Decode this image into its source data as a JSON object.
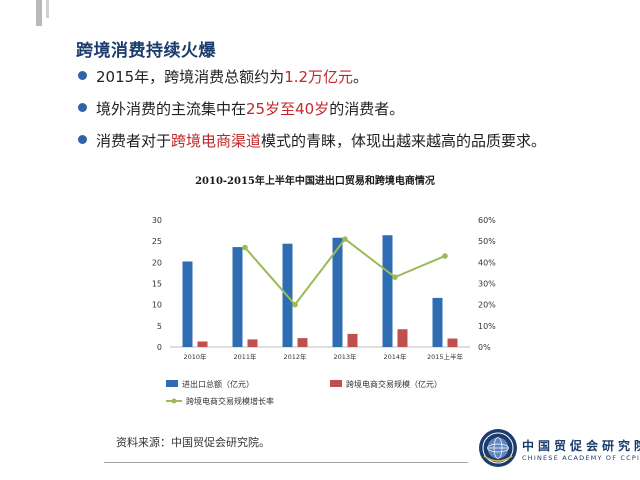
{
  "slide": {
    "title": "跨境消费持续火爆",
    "bullets": [
      {
        "pre": "2015年，跨境消费总额约为",
        "hl": "1.2万亿元",
        "post": "。"
      },
      {
        "pre": "境外消费的主流集中在",
        "hl": "25岁至40岁",
        "post": "的消费者。"
      },
      {
        "pre": "消费者对于",
        "hl": "跨境电商渠道",
        "post": "模式的青睐，体现出越来越高的品质要求。"
      }
    ],
    "source": "资料来源：中国贸促会研究院。",
    "org_cn": "中国贸促会研究院",
    "org_en": "CHINESE ACADEMY OF CCPIT"
  },
  "colors": {
    "title": "#1d3c6e",
    "highlight": "#c0282d",
    "bullet": "#2f63a3",
    "bar_trade": "#2f6db3",
    "bar_ecommerce": "#c0504d",
    "line_growth": "#9bbb59",
    "axis": "#bfbfbf"
  },
  "chart_data": {
    "type": "bar",
    "title": "2010-2015年上半年中国进出口贸易和跨境电商情况",
    "categories": [
      "2010年",
      "2011年",
      "2012年",
      "2013年",
      "2014年",
      "2015上半年"
    ],
    "series": [
      {
        "name": "进出口总额（亿元）",
        "type": "bar",
        "axis": "left",
        "values": [
          20.2,
          23.6,
          24.4,
          25.8,
          26.4,
          11.6
        ]
      },
      {
        "name": "跨境电商交易规模（亿元）",
        "type": "bar",
        "axis": "left",
        "values": [
          1.3,
          1.8,
          2.1,
          3.1,
          4.2,
          2.0
        ]
      },
      {
        "name": "跨境电商交易规模增长率",
        "type": "line",
        "axis": "right",
        "values": [
          null,
          0.47,
          0.2,
          0.51,
          0.33,
          0.43
        ]
      }
    ],
    "y_left": {
      "min": 0,
      "max": 30,
      "ticks": [
        "0",
        "5",
        "10",
        "15",
        "20",
        "25",
        "30"
      ]
    },
    "y_right": {
      "min": 0,
      "max": 0.6,
      "ticks": [
        "0%",
        "10%",
        "20%",
        "30%",
        "40%",
        "50%",
        "60%"
      ]
    },
    "grid": false,
    "legend_position": "bottom"
  }
}
